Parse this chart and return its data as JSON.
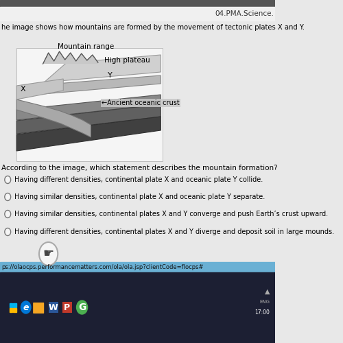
{
  "bg_color": "#e8e8e8",
  "header_text": "04.PMA.Science.",
  "intro_text": "he image shows how mountains are formed by the movement of tectonic plates X and Y.",
  "diagram_label_mountain": "Mountain range",
  "diagram_label_plateau": "High plateau",
  "diagram_label_x": "X",
  "diagram_label_y": "Y",
  "diagram_label_crust": "←Ancient oceanic crust",
  "question_text": "According to the image, which statement describes the mountain formation?",
  "choices": [
    "Having different densities, continental plate X and oceanic plate Y collide.",
    "Having similar densities, continental plate X and oceanic plate Y separate.",
    "Having similar densities, continental plates X and Y converge and push Earth’s crust upward.",
    "Having different densities, continental plates X and Y diverge and deposit soil in large mounds."
  ],
  "taskbar_color": "#1c1f33",
  "url_text": "ps://olaocps.performancematters.com/ola/ola.jsp?clientCode=flocps#",
  "url_bg": "#6ab0d4",
  "white_bg": "#f5f5f5"
}
